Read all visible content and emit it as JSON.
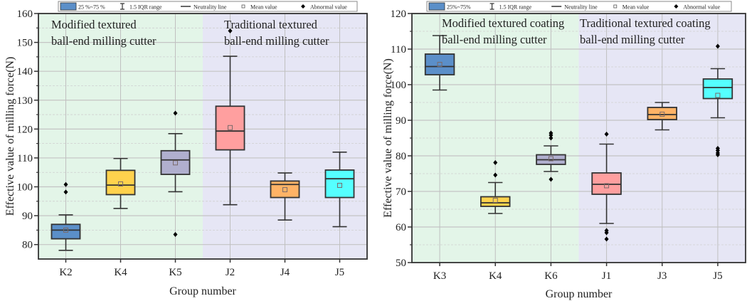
{
  "chart_data": [
    {
      "type": "box",
      "title": "",
      "xlabel": "Group number",
      "ylabel": "Effective value of milling force(N)",
      "ylim": [
        75,
        160
      ],
      "yticks": [
        80,
        90,
        100,
        110,
        120,
        130,
        140,
        150,
        160
      ],
      "grid": true,
      "legend": {
        "placement": "top",
        "entries": [
          "25 %~75 %",
          "1.5 IQR range",
          "Neutrality line",
          "Mean value",
          "Abnormal value"
        ]
      },
      "regions": [
        {
          "label_lines": [
            "Modified textured",
            "ball-end milling cutter"
          ],
          "from_index": 0,
          "to_index": 2,
          "color": "#e3f5e8"
        },
        {
          "label_lines": [
            "Traditional textured",
            "ball-end milling cutter"
          ],
          "from_index": 3,
          "to_index": 5,
          "color": "#e6e6f5"
        }
      ],
      "categories": [
        "K2",
        "K4",
        "K5",
        "J2",
        "J4",
        "J5"
      ],
      "series": [
        {
          "name": "K2",
          "color": "#5b8fc9",
          "whisker_low": 78,
          "q1": 82,
          "median": 85,
          "q3": 87,
          "whisker_high": 90.3,
          "mean": 85,
          "outliers": [
            98.2,
            100.8
          ]
        },
        {
          "name": "K4",
          "color": "#ffd24d",
          "whisker_low": 92.5,
          "q1": 97.3,
          "median": 100.6,
          "q3": 105.7,
          "whisker_high": 109.8,
          "mean": 101,
          "outliers": []
        },
        {
          "name": "K5",
          "color": "#b0afce",
          "whisker_low": 98.3,
          "q1": 104.3,
          "median": 109.3,
          "q3": 112.5,
          "whisker_high": 118.4,
          "mean": 108.3,
          "outliers": [
            83.5,
            125.5
          ]
        },
        {
          "name": "J2",
          "color": "#ff9f9f",
          "whisker_low": 93.8,
          "q1": 112.8,
          "median": 119.3,
          "q3": 127.9,
          "whisker_high": 145.2,
          "mean": 120.5,
          "outliers": [
            154
          ]
        },
        {
          "name": "J4",
          "color": "#ffb366",
          "whisker_low": 88.5,
          "q1": 96.3,
          "median": 100.8,
          "q3": 102,
          "whisker_high": 104.8,
          "mean": 99,
          "outliers": []
        },
        {
          "name": "J5",
          "color": "#55ffff",
          "whisker_low": 86.2,
          "q1": 96.3,
          "median": 102.8,
          "q3": 105.8,
          "whisker_high": 112,
          "mean": 100.5,
          "outliers": []
        }
      ]
    },
    {
      "type": "box",
      "title": "",
      "xlabel": "Group number",
      "ylabel": "Effective value of milling force(N)",
      "ylim": [
        50,
        120
      ],
      "yticks": [
        50,
        60,
        70,
        80,
        90,
        100,
        110,
        120
      ],
      "grid": true,
      "legend": {
        "placement": "top",
        "entries": [
          "25%~75%",
          "1.5 IQR range",
          "Neutrality line",
          "Mean value",
          "Abnormal value"
        ]
      },
      "regions": [
        {
          "label_lines": [
            "Modified textured coating",
            "ball-end milling cutter"
          ],
          "from_index": 0,
          "to_index": 2,
          "color": "#e3f5e8"
        },
        {
          "label_lines": [
            "Traditional textured coating",
            "ball-end milling cutter"
          ],
          "from_index": 3,
          "to_index": 5,
          "color": "#e6e6f5"
        }
      ],
      "categories": [
        "K3",
        "K4",
        "K6",
        "J1",
        "J3",
        "J5"
      ],
      "series": [
        {
          "name": "K3",
          "color": "#5b8fc9",
          "whisker_low": 98.5,
          "q1": 102.8,
          "median": 105.1,
          "q3": 108.6,
          "whisker_high": 113.8,
          "mean": 105.7,
          "outliers": []
        },
        {
          "name": "K4",
          "color": "#ffd24d",
          "whisker_low": 63.8,
          "q1": 65.8,
          "median": 66.8,
          "q3": 68.5,
          "whisker_high": 72.5,
          "mean": 67.5,
          "outliers": [
            74.6,
            78.1
          ]
        },
        {
          "name": "K6",
          "color": "#b0afce",
          "whisker_low": 75.6,
          "q1": 77.6,
          "median": 78.9,
          "q3": 80.3,
          "whisker_high": 82.8,
          "mean": 79.2,
          "outliers": [
            73.4,
            85,
            85.8,
            86.4
          ]
        },
        {
          "name": "J1",
          "color": "#ff9f9f",
          "whisker_low": 61,
          "q1": 69.2,
          "median": 72,
          "q3": 75.2,
          "whisker_high": 83.3,
          "mean": 71.6,
          "outliers": [
            56.6,
            58.4,
            59,
            86.1
          ]
        },
        {
          "name": "J3",
          "color": "#ffb366",
          "whisker_low": 87.3,
          "q1": 90.2,
          "median": 91.6,
          "q3": 93.6,
          "whisker_high": 95,
          "mean": 91.7,
          "outliers": []
        },
        {
          "name": "J5",
          "color": "#55ffff",
          "whisker_low": 90.7,
          "q1": 96.1,
          "median": 99.2,
          "q3": 101.6,
          "whisker_high": 104.5,
          "mean": 97,
          "outliers": [
            80.3,
            80.8,
            81.5,
            82.1,
            110.8
          ]
        }
      ]
    }
  ]
}
